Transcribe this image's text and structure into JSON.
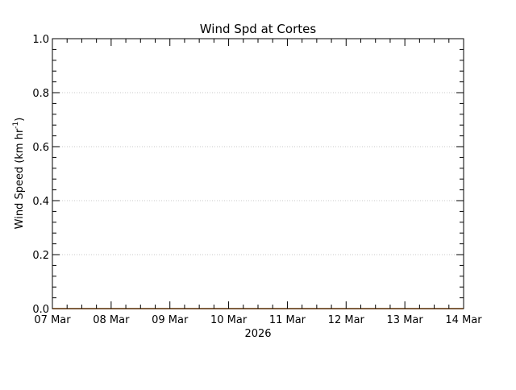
{
  "chart_data": {
    "type": "line",
    "title": "Wind Spd at Cortes",
    "ylabel": "Wind Speed (km hr",
    "ylabel_sup": "-1",
    "ylabel_close": ")",
    "xlabel": "2026",
    "x_tick_labels": [
      "07 Mar",
      "08 Mar",
      "09 Mar",
      "10 Mar",
      "11 Mar",
      "12 Mar",
      "13 Mar",
      "14 Mar"
    ],
    "y_tick_labels": [
      "0.0",
      "0.2",
      "0.4",
      "0.6",
      "0.8",
      "1.0"
    ],
    "y_ticks": [
      0.0,
      0.2,
      0.4,
      0.6,
      0.8,
      1.0
    ],
    "x_range": [
      "2026-03-07",
      "2026-03-14"
    ],
    "ylim": [
      0.0,
      1.0
    ],
    "grid": true,
    "series": [
      {
        "color": "#ff7f00",
        "x": [
          "2026-03-07",
          "2026-03-14"
        ],
        "values": [
          0.0,
          0.0
        ]
      }
    ]
  }
}
